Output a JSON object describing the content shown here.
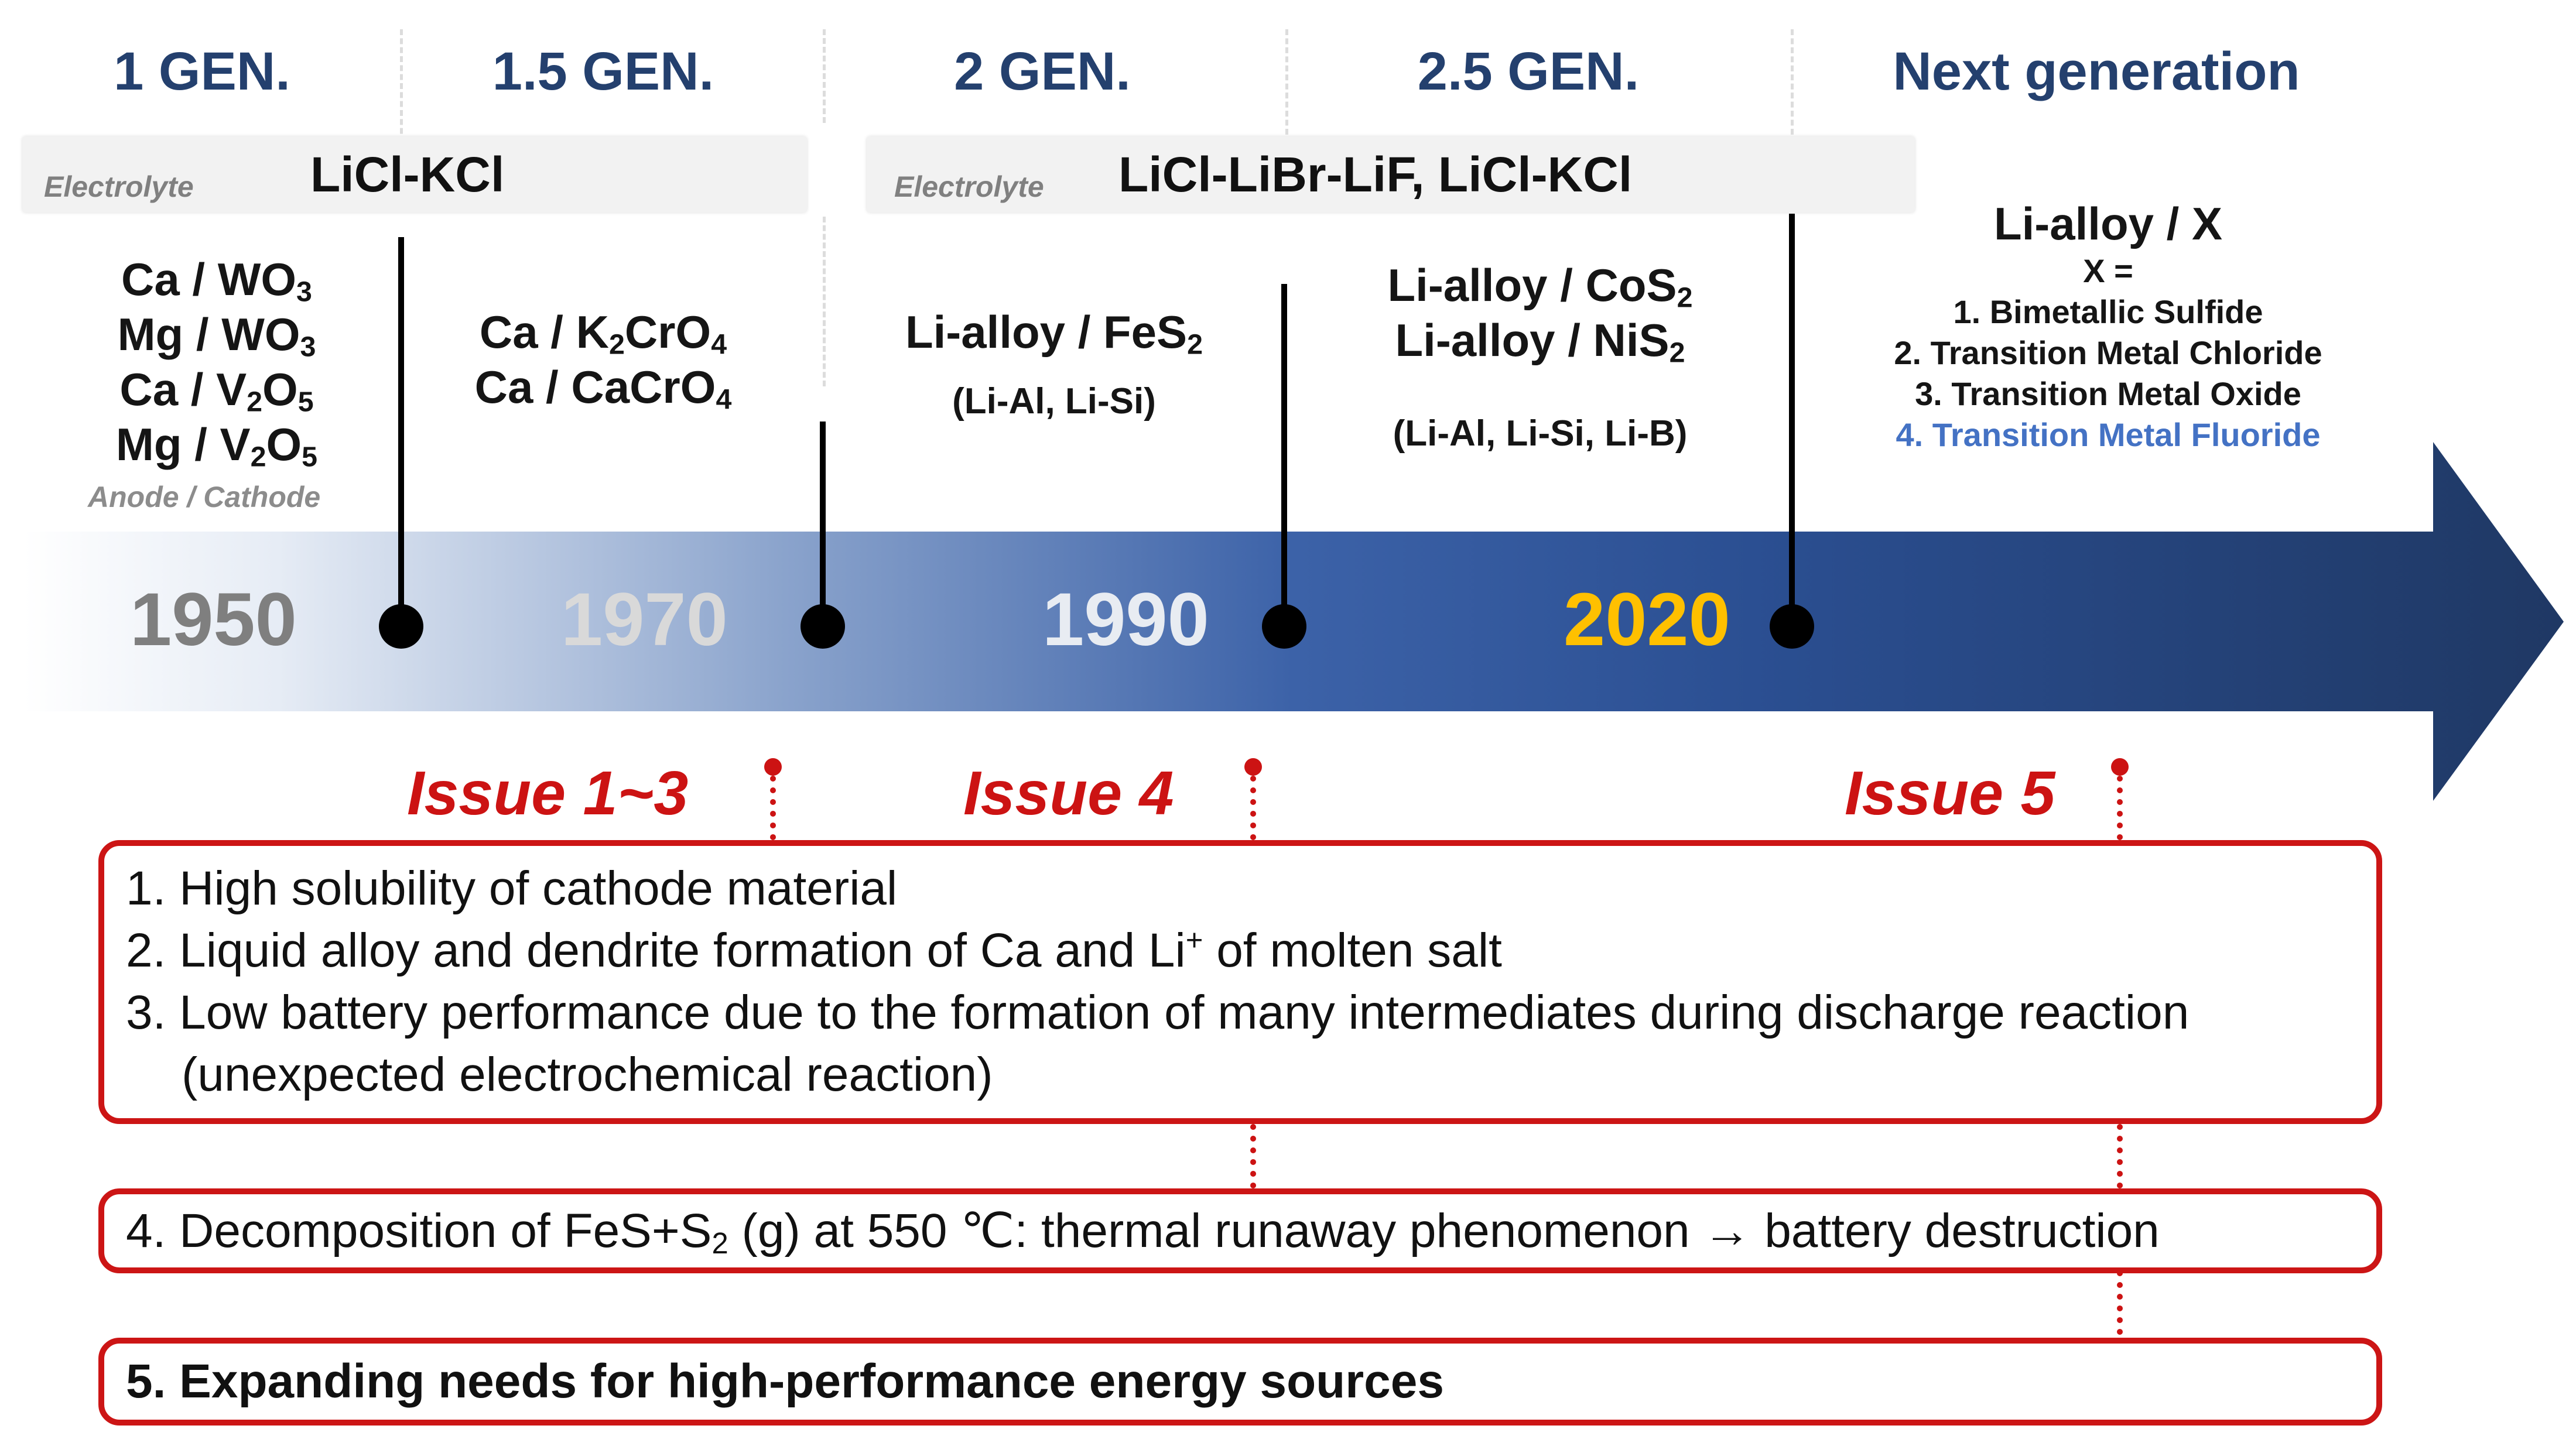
{
  "generations": [
    "1 GEN.",
    "1.5 GEN.",
    "2 GEN.",
    "2.5 GEN.",
    "Next generation"
  ],
  "electrolytes": [
    {
      "label": "Electrolyte",
      "value": "LiCl-KCl"
    },
    {
      "label": "Electrolyte",
      "value": "LiCl-LiBr-LiF, LiCl-KCl"
    }
  ],
  "gen1": {
    "lines": [
      "Ca / WO3",
      "Mg / WO3",
      "Ca / V2O5",
      "Mg / V2O5"
    ],
    "caption": "Anode / Cathode"
  },
  "gen15": {
    "lines": [
      "Ca / K2CrO4",
      "Ca / CaCrO4"
    ]
  },
  "gen2": {
    "line": "Li-alloy / FeS2",
    "alloys": "(Li-Al, Li-Si)"
  },
  "gen25": {
    "lines": [
      "Li-alloy / CoS2",
      "Li-alloy / NiS2"
    ],
    "alloys": "(Li-Al, Li-Si, Li-B)"
  },
  "next": {
    "title": "Li-alloy / X",
    "x_label": "X =",
    "items": [
      "1. Bimetallic Sulfide",
      "2. Transition Metal Chloride",
      "3. Transition Metal Oxide",
      "4. Transition Metal Fluoride"
    ]
  },
  "years": [
    "1950",
    "1970",
    "1990",
    "2020"
  ],
  "issues": [
    "Issue 1~3",
    "Issue 4",
    "Issue 5"
  ],
  "issue_box1": [
    "1. High solubility of cathode material",
    "2. Liquid alloy and dendrite formation of Ca and Li+ of molten salt",
    "3. Low battery performance due to the formation of many intermediates during discharge reaction",
    "(unexpected electrochemical reaction)"
  ],
  "issue_box2": "4. Decomposition of FeS+S2 (g) at 550 ℃: thermal runaway phenomenon → battery destruction",
  "issue_box3": "5. Expanding needs for high-performance energy sources",
  "colors": {
    "gen_title": "#24406e",
    "arrow_dark": "#1f3864",
    "arrow_mid": "#2f5597",
    "year_2020": "#ffc000",
    "issue_red": "#cc1313",
    "fluoride_blue": "#4472c4"
  }
}
